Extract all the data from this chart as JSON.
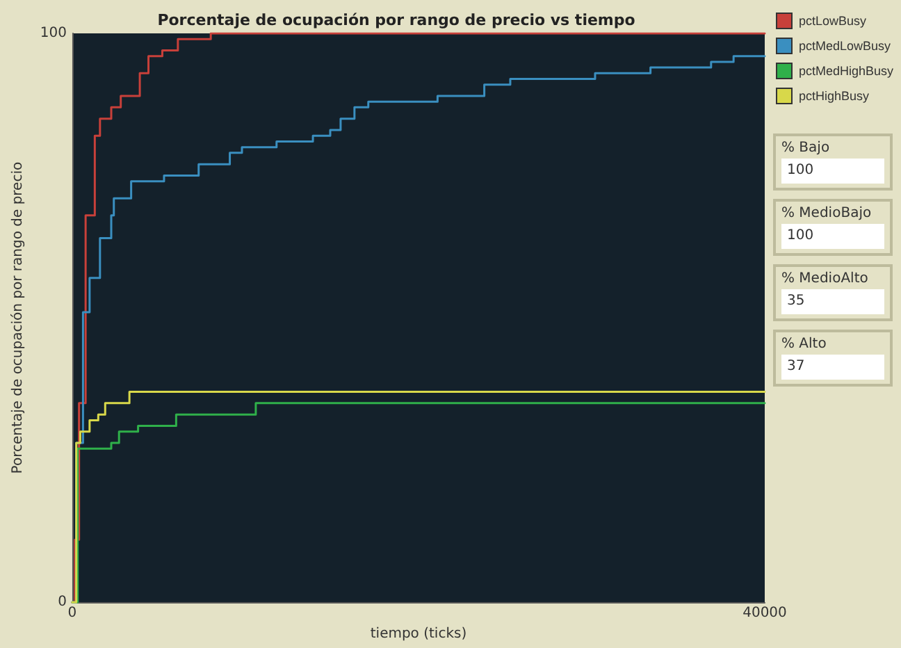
{
  "chart_data": [
    {
      "type": "step",
      "title": "Porcentaje de ocupación por rango de precio vs tiempo",
      "xlabel": "tiempo (ticks)",
      "ylabel": "Porcentaje de ocupación por rango de precio",
      "xlim": [
        0,
        40000
      ],
      "ylim": [
        0,
        100
      ],
      "xticks": [
        0,
        40000
      ],
      "yticks": [
        0,
        100
      ],
      "grid": false,
      "legend": "right",
      "marker": "none",
      "line_style": "solid",
      "series": [
        {
          "name": "pctLowBusy",
          "color": "#c8403a",
          "x": [
            0,
            155,
            390,
            770,
            1300,
            1600,
            2250,
            2800,
            3400,
            3900,
            4400,
            5200,
            6100,
            7400,
            8000,
            40000
          ],
          "values": [
            0,
            11,
            35,
            68,
            82,
            85,
            87,
            89,
            89,
            93,
            96,
            97,
            99,
            99,
            100,
            100
          ]
        },
        {
          "name": "pctMedLowBusy",
          "color": "#3a8fc0",
          "x": [
            0,
            230,
            620,
            1000,
            1600,
            2250,
            2400,
            3400,
            5300,
            7300,
            9100,
            9800,
            11800,
            13900,
            14900,
            15500,
            16300,
            17100,
            21100,
            23800,
            25300,
            30200,
            33400,
            36900,
            38200,
            40000
          ],
          "values": [
            0,
            28,
            51,
            57,
            64,
            68,
            71,
            74,
            75,
            77,
            79,
            80,
            81,
            82,
            83,
            85,
            87,
            88,
            89,
            91,
            92,
            93,
            94,
            95,
            96,
            96
          ]
        },
        {
          "name": "pctMedHighBusy",
          "color": "#2fb04a",
          "x": [
            0,
            310,
            2250,
            2700,
            3800,
            6000,
            10600,
            40000
          ],
          "values": [
            0,
            27,
            28,
            30,
            31,
            33,
            35,
            35
          ]
        },
        {
          "name": "pctHighBusy",
          "color": "#d8d84a",
          "x": [
            0,
            230,
            460,
            1000,
            1500,
            1900,
            3300,
            40000
          ],
          "values": [
            0,
            28,
            30,
            32,
            33,
            35,
            37,
            37
          ]
        }
      ]
    },
    {
      "type": "other",
      "categories": [
        "% Bajo",
        "% MedioBajo",
        "% MedioAlto",
        "% Alto"
      ],
      "values": [
        100,
        100,
        35,
        37
      ],
      "data_labels": true
    }
  ]
}
